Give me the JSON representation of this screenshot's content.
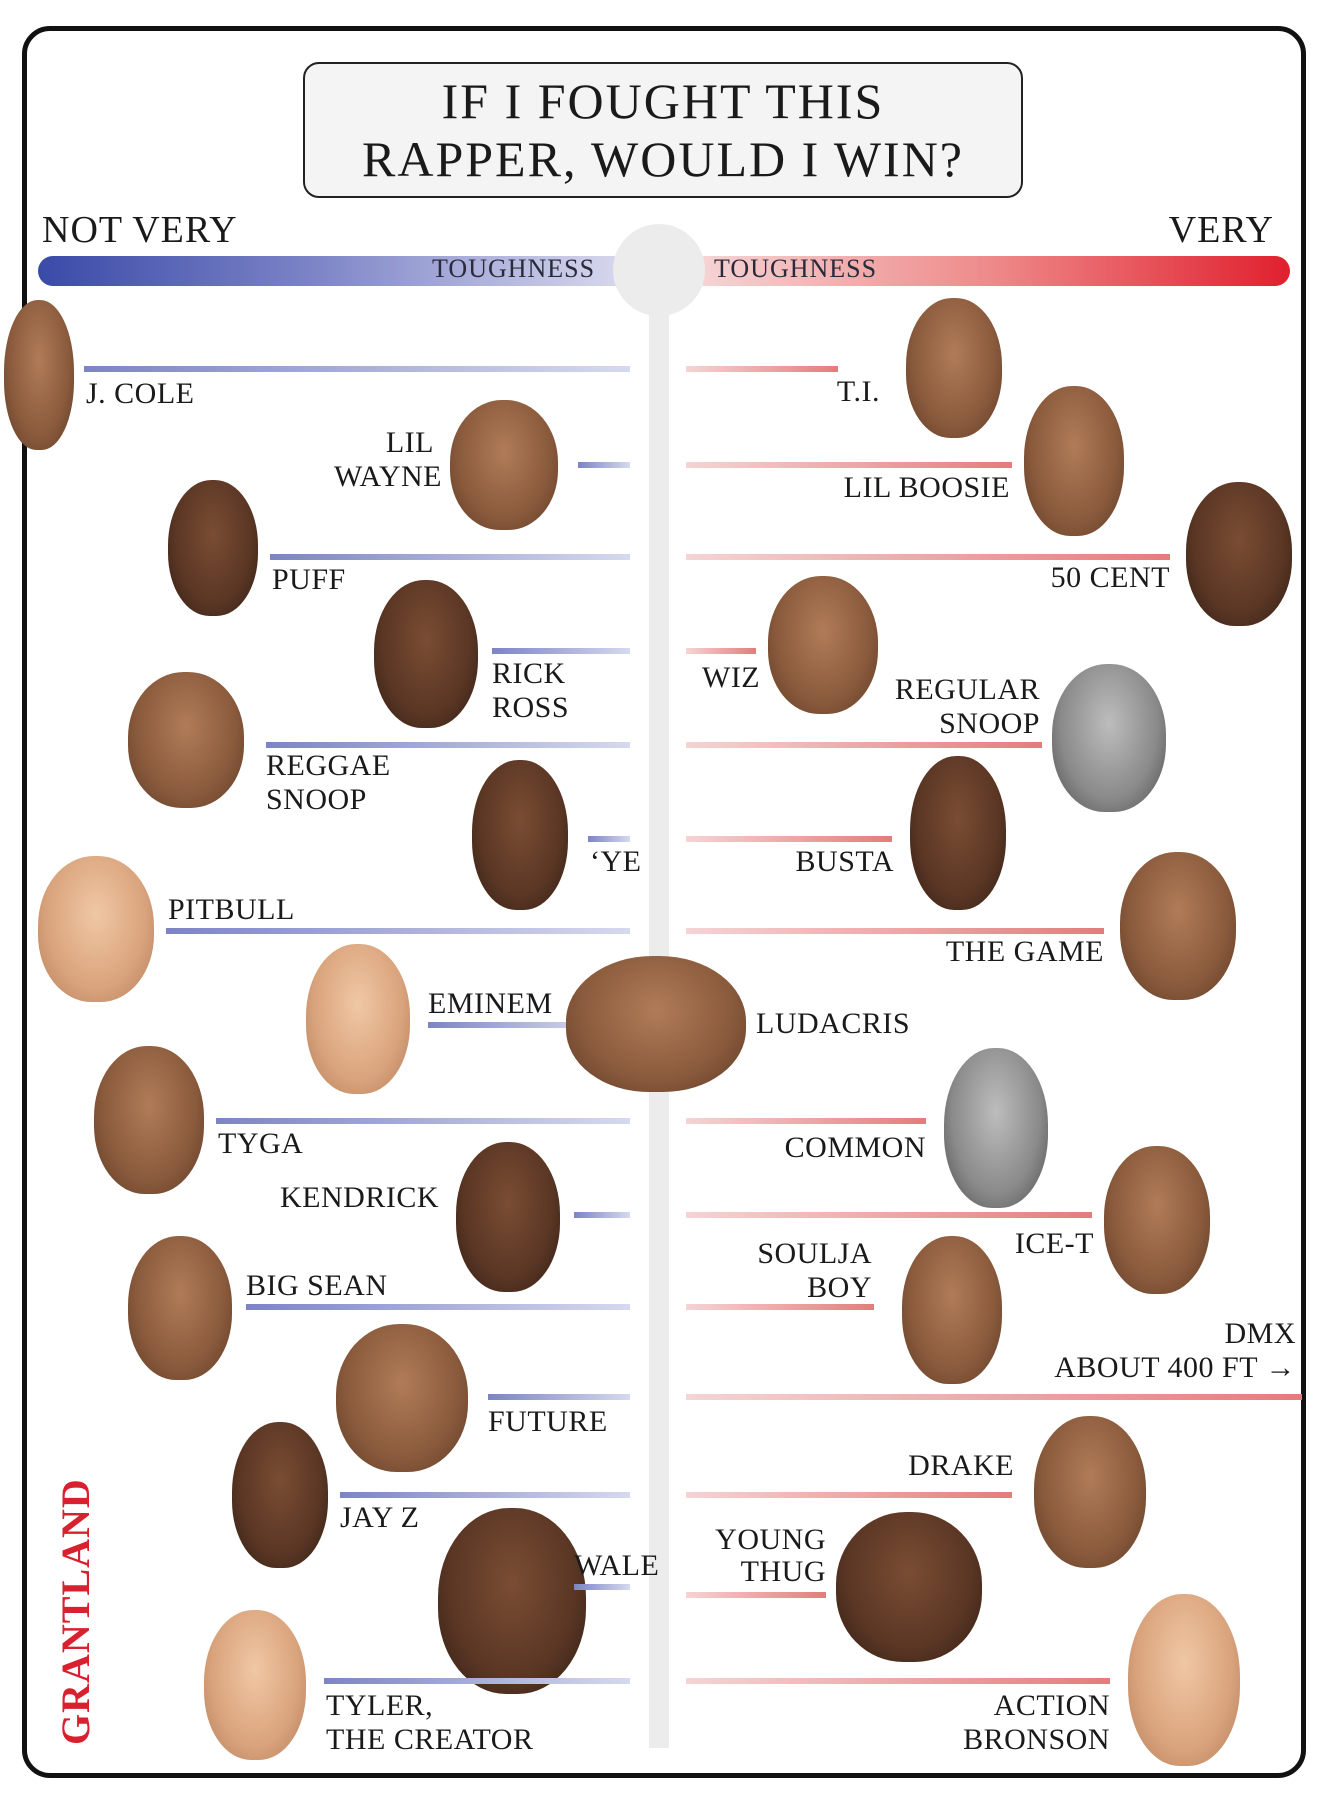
{
  "title": {
    "line1": "IF I FOUGHT THIS",
    "line2": "RAPPER, WOULD I WIN?"
  },
  "scale": {
    "left_end": "NOT VERY",
    "right_end": "VERY",
    "left_bar_label": "TOUGHNESS",
    "right_bar_label": "TOUGHNESS",
    "left_color": "#3a4aa8",
    "right_color": "#e0202e"
  },
  "rappers": {
    "jcole": "J. COLE",
    "lilwayne1": "LIL",
    "lilwayne2": "WAYNE",
    "puff": "PUFF",
    "rickross1": "RICK",
    "rickross2": "ROSS",
    "reggaesnoop1": "REGGAE",
    "reggaesnoop2": "SNOOP",
    "ye": "‘YE",
    "pitbull": "PITBULL",
    "eminem": "EMINEM",
    "tyga": "TYGA",
    "kendrick": "KENDRICK",
    "bigsean": "BIG SEAN",
    "future": "FUTURE",
    "jayz": "JAY Z",
    "wale": "WALE",
    "tyler1": "TYLER,",
    "tyler2": "THE CREATOR",
    "ti": "T.I.",
    "lilboosie": "LIL BOOSIE",
    "fiftycent": "50 CENT",
    "wiz": "WIZ",
    "regularsnoop1": "REGULAR",
    "regularsnoop2": "SNOOP",
    "busta": "BUSTA",
    "thegame": "THE GAME",
    "ludacris": "LUDACRIS",
    "common": "COMMON",
    "icet": "ICE-T",
    "soulja1": "SOULJA",
    "soulja2": "BOY",
    "dmx1": "DMX",
    "dmx2": "ABOUT 400 FT →",
    "drake": "DRAKE",
    "youngthug1": "YOUNG",
    "youngthug2": "THUG",
    "action1": "ACTION",
    "action2": "BRONSON"
  },
  "brand": "GRANTLAND"
}
